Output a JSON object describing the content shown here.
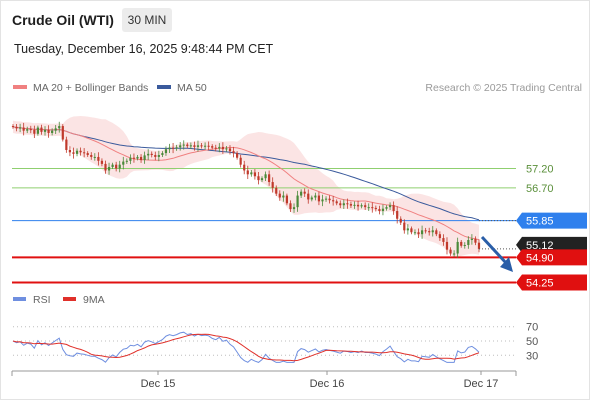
{
  "header": {
    "instrument": "Crude Oil (WTI)",
    "timeframe": "30 MIN",
    "datetime": "Tuesday, December 16, 2025 9:48:44 PM CET"
  },
  "colors": {
    "ma20": "#f08080",
    "ma50": "#3a5a9c",
    "bollinger_fill": "#fbe1e1",
    "candle_up": "#4a8a3a",
    "candle_down": "#c0392b",
    "resistance": "#8fcf6f",
    "pivot": "#2f80ed",
    "support": "#e01010",
    "rsi": "#6f8fe0",
    "rsi_ma": "#e0302a",
    "arrow": "#2a5ea8",
    "price_tag": "#222222"
  },
  "chart_data": [
    {
      "type": "candlestick",
      "legend": [
        {
          "label": "MA 20 + Bollinger Bands",
          "color": "#f08080"
        },
        {
          "label": "MA 50",
          "color": "#3a5a9c"
        }
      ],
      "source_label": "Research © 2025 Trading Central",
      "levels": [
        {
          "value": 57.2,
          "label": "57.20",
          "kind": "resistance",
          "color": "#8fcf6f"
        },
        {
          "value": 56.7,
          "label": "56.70",
          "kind": "resistance",
          "color": "#8fcf6f"
        },
        {
          "value": 55.85,
          "label": "55.85",
          "kind": "pivot",
          "color": "#2f80ed"
        },
        {
          "value": 54.9,
          "label": "54.90",
          "kind": "support",
          "color": "#e01010"
        },
        {
          "value": 54.25,
          "label": "54.25",
          "kind": "support",
          "color": "#e01010"
        }
      ],
      "last_price": {
        "value": 55.12,
        "label": "55.12"
      },
      "x_ticks": [
        "Dec 15",
        "Dec 16",
        "Dec 17"
      ],
      "ylim": [
        53.9,
        59.0
      ],
      "close": [
        58.28,
        58.24,
        58.26,
        58.18,
        58.22,
        58.2,
        58.1,
        58.26,
        58.15,
        58.2,
        58.12,
        58.18,
        58.24,
        58.3,
        57.95,
        57.68,
        57.62,
        57.58,
        57.66,
        57.62,
        57.6,
        57.55,
        57.5,
        57.5,
        57.4,
        57.32,
        57.15,
        57.24,
        57.3,
        57.2,
        57.3,
        57.38,
        57.4,
        57.48,
        57.46,
        57.5,
        57.42,
        57.54,
        57.58,
        57.55,
        57.5,
        57.55,
        57.6,
        57.7,
        57.74,
        57.72,
        57.75,
        57.8,
        57.82,
        57.78,
        57.8,
        57.76,
        57.8,
        57.78,
        57.79,
        57.78,
        57.74,
        57.72,
        57.76,
        57.7,
        57.72,
        57.65,
        57.6,
        57.48,
        57.3,
        57.15,
        57.05,
        57.1,
        57.0,
        56.9,
        56.95,
        57.05,
        56.85,
        56.7,
        56.55,
        56.45,
        56.5,
        56.3,
        56.15,
        56.2,
        56.5,
        56.6,
        56.55,
        56.4,
        56.45,
        56.5,
        56.35,
        56.4,
        56.42,
        56.38,
        56.35,
        56.3,
        56.25,
        56.3,
        56.28,
        56.24,
        56.26,
        56.22,
        56.25,
        56.2,
        56.2,
        56.18,
        56.15,
        56.1,
        56.16,
        56.2,
        56.25,
        56.1,
        55.9,
        55.8,
        55.6,
        55.65,
        55.55,
        55.55,
        55.5,
        55.6,
        55.58,
        55.55,
        55.6,
        55.5,
        55.4,
        55.3,
        55.1,
        55.0,
        55.0,
        55.3,
        55.2,
        55.22,
        55.35,
        55.38,
        55.28,
        55.12
      ]
    },
    {
      "type": "line",
      "legend": [
        {
          "label": "RSI",
          "color": "#6f8fe0"
        },
        {
          "label": "9MA",
          "color": "#e0302a"
        }
      ],
      "y_ticks": [
        "70",
        "50",
        "30"
      ],
      "ylim": [
        15,
        85
      ]
    }
  ]
}
